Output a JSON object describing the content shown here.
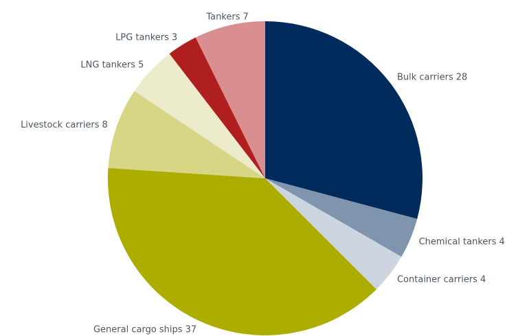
{
  "chart_data": {
    "type": "pie",
    "categories": [
      "Bulk carriers",
      "Chemical tankers",
      "Container carriers",
      "General cargo ships",
      "Livestock carriers",
      "LNG tankers",
      "LPG tankers",
      "Tankers"
    ],
    "values": [
      28,
      4,
      4,
      37,
      8,
      5,
      3,
      7
    ],
    "colors": [
      "#002b5c",
      "#7f94ad",
      "#cdd6e0",
      "#adad00",
      "#d6d685",
      "#ecebcc",
      "#b01f1f",
      "#d98f8f"
    ]
  }
}
